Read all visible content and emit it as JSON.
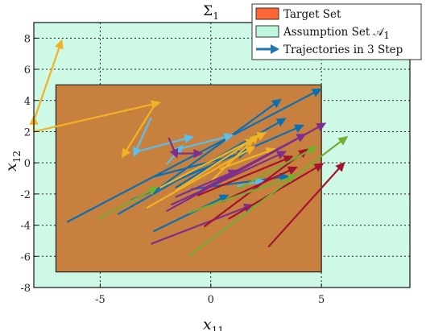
{
  "chart_data": {
    "type": "line",
    "title": "Σ",
    "title_sub": "1",
    "xlabel": "x",
    "xlabel_sub": "11",
    "ylabel": "x",
    "ylabel_sub": "12",
    "xlim": [
      -8,
      9
    ],
    "ylim": [
      -8,
      9
    ],
    "xticks": [
      -5,
      0,
      5
    ],
    "yticks": [
      -8,
      -6,
      -4,
      -2,
      0,
      2,
      4,
      6,
      8
    ],
    "grid": true,
    "legend_position": "top-right",
    "legend": [
      {
        "label": "Target Set",
        "color": "#ff6633",
        "kind": "patch"
      },
      {
        "label": "Assumption Set 𝒜",
        "label_sub": "1",
        "color": "#bff7de",
        "kind": "patch"
      },
      {
        "label": "Trajectories in 3 Step",
        "color": "#1f77b4",
        "kind": "line"
      }
    ],
    "assumption_set": {
      "x": [
        -8,
        9
      ],
      "y": [
        -8,
        9
      ],
      "color": "#cdf9e6"
    },
    "target_set": {
      "x": [
        -7,
        5
      ],
      "y": [
        -7,
        5
      ],
      "color": "#c8803e"
    },
    "series": [
      {
        "color": "#0b6fb3",
        "points": [
          [
            -6.5,
            -3.8
          ],
          [
            4.8,
            4.6
          ]
        ]
      },
      {
        "color": "#0b6fb3",
        "points": [
          [
            -4.2,
            -3.3
          ],
          [
            3.2,
            2.7
          ]
        ]
      },
      {
        "color": "#0b6fb3",
        "points": [
          [
            -3.6,
            -2.4
          ],
          [
            4.0,
            2.3
          ]
        ]
      },
      {
        "color": "#0b6fb3",
        "points": [
          [
            -2.6,
            -1.9
          ],
          [
            3.0,
            3.9
          ]
        ]
      },
      {
        "color": "#0b6fb3",
        "points": [
          [
            -1.6,
            -1.6
          ],
          [
            1.6,
            1.2
          ]
        ]
      },
      {
        "color": "#0b6fb3",
        "points": [
          [
            -2.6,
            -4.4
          ],
          [
            0.6,
            -2.2
          ]
        ]
      },
      {
        "color": "#0b6fb3",
        "points": [
          [
            -0.9,
            -1.7
          ],
          [
            3.3,
            -0.9
          ]
        ]
      },
      {
        "color": "#0b6fb3",
        "points": [
          [
            -2.6,
            -0.9
          ],
          [
            1.4,
            0.6
          ]
        ]
      },
      {
        "color": "#5bbfec",
        "points": [
          [
            -2.7,
            2.9
          ],
          [
            -3.4,
            0.7
          ],
          [
            -1.0,
            1.6
          ]
        ]
      },
      {
        "color": "#5bbfec",
        "points": [
          [
            -2.0,
            -0.1
          ],
          [
            -1.4,
            0.9
          ],
          [
            0.8,
            1.7
          ]
        ]
      },
      {
        "color": "#5bbfec",
        "points": [
          [
            1.2,
            -1.5
          ],
          [
            2.2,
            -1.2
          ]
        ]
      },
      {
        "color": "#f0b323",
        "points": [
          [
            -8.0,
            2.0
          ],
          [
            -8.0,
            2.7
          ],
          [
            -6.8,
            7.6
          ]
        ]
      },
      {
        "color": "#f0b323",
        "points": [
          [
            -8.0,
            2.0
          ],
          [
            -2.5,
            3.8
          ],
          [
            -3.9,
            0.6
          ]
        ]
      },
      {
        "color": "#f0b323",
        "points": [
          [
            -2.3,
            -1.6
          ],
          [
            2.3,
            1.8
          ]
        ]
      },
      {
        "color": "#f0b323",
        "points": [
          [
            -2.9,
            -2.9
          ],
          [
            1.8,
            0.9
          ]
        ]
      },
      {
        "color": "#f0b323",
        "points": [
          [
            -1.6,
            -1.8
          ],
          [
            1.8,
            1.4
          ]
        ]
      },
      {
        "color": "#f0b323",
        "points": [
          [
            0.4,
            -0.4
          ],
          [
            2.7,
            0.8
          ]
        ]
      },
      {
        "color": "#f0b323",
        "points": [
          [
            0.0,
            -1.2
          ],
          [
            2.0,
            1.6
          ]
        ]
      },
      {
        "color": "#7e2f8e",
        "points": [
          [
            -2.7,
            -5.2
          ],
          [
            1.7,
            -2.8
          ]
        ]
      },
      {
        "color": "#7e2f8e",
        "points": [
          [
            -2.0,
            -3.1
          ],
          [
            5.0,
            2.4
          ]
        ]
      },
      {
        "color": "#7e2f8e",
        "points": [
          [
            -1.8,
            -2.7
          ],
          [
            3.2,
            0.6
          ]
        ]
      },
      {
        "color": "#7e2f8e",
        "points": [
          [
            -0.4,
            -1.7
          ],
          [
            4.1,
            1.7
          ]
        ]
      },
      {
        "color": "#7e2f8e",
        "points": [
          [
            -1.9,
            1.6
          ],
          [
            -1.6,
            0.6
          ],
          [
            -0.6,
            0.6
          ]
        ]
      },
      {
        "color": "#7e2f8e",
        "points": [
          [
            -1.6,
            -2.2
          ],
          [
            1.0,
            -0.6
          ]
        ]
      },
      {
        "color": "#a2142f",
        "points": [
          [
            -0.6,
            -2.1
          ],
          [
            3.5,
            0.3
          ]
        ]
      },
      {
        "color": "#a2142f",
        "points": [
          [
            0.5,
            -2.5
          ],
          [
            3.7,
            -0.4
          ]
        ]
      },
      {
        "color": "#a2142f",
        "points": [
          [
            -0.3,
            -4.1
          ],
          [
            4.2,
            0.7
          ]
        ]
      },
      {
        "color": "#a2142f",
        "points": [
          [
            2.6,
            -5.4
          ],
          [
            5.9,
            -0.2
          ]
        ]
      },
      {
        "color": "#a2142f",
        "points": [
          [
            0.8,
            -3.6
          ],
          [
            4.9,
            -0.2
          ]
        ]
      },
      {
        "color": "#77ac30",
        "points": [
          [
            -5.1,
            -3.6
          ],
          [
            -2.6,
            -1.7
          ]
        ]
      },
      {
        "color": "#77ac30",
        "points": [
          [
            -1.0,
            -6.0
          ],
          [
            6.0,
            1.5
          ]
        ]
      },
      {
        "color": "#77ac30",
        "points": [
          [
            -1.0,
            -3.2
          ],
          [
            3.7,
            -0.9
          ]
        ]
      },
      {
        "color": "#77ac30",
        "points": [
          [
            1.2,
            -1.7
          ],
          [
            4.6,
            0.9
          ]
        ]
      }
    ]
  }
}
